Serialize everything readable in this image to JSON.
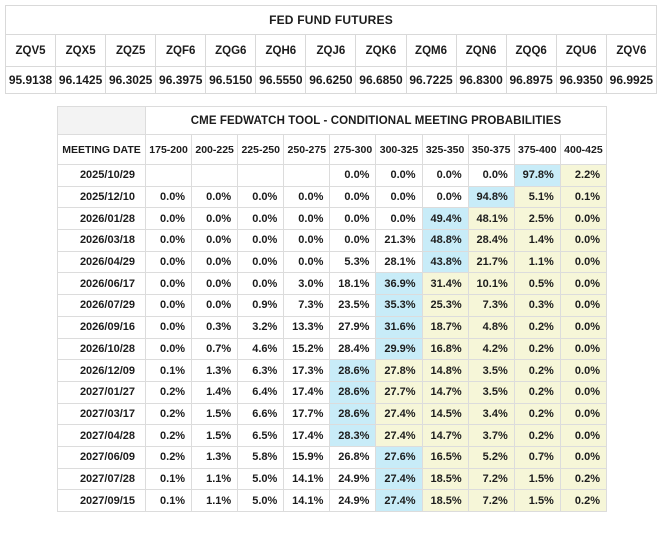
{
  "chart_data": [
    {
      "type": "table",
      "title": "FED FUND FUTURES",
      "columns": [
        "ZQV5",
        "ZQX5",
        "ZQZ5",
        "ZQF6",
        "ZQG6",
        "ZQH6",
        "ZQJ6",
        "ZQK6",
        "ZQM6",
        "ZQN6",
        "ZQQ6",
        "ZQU6",
        "ZQV6"
      ],
      "rows": [
        [
          "95.9138",
          "96.1425",
          "96.3025",
          "96.3975",
          "96.5150",
          "96.5550",
          "96.6250",
          "96.6850",
          "96.7225",
          "96.8300",
          "96.8975",
          "96.9350",
          "96.9925"
        ]
      ]
    },
    {
      "type": "table",
      "title": "CME FEDWATCH TOOL - CONDITIONAL MEETING PROBABILITIES",
      "columns": [
        "MEETING DATE",
        "175-200",
        "200-225",
        "225-250",
        "250-275",
        "275-300",
        "300-325",
        "325-350",
        "350-375",
        "375-400",
        "400-425"
      ],
      "rows": [
        [
          "2025/10/29",
          "",
          "",
          "",
          "",
          "0.0%",
          "0.0%",
          "0.0%",
          "0.0%",
          "97.8%",
          "2.2%"
        ],
        [
          "2025/12/10",
          "0.0%",
          "0.0%",
          "0.0%",
          "0.0%",
          "0.0%",
          "0.0%",
          "0.0%",
          "94.8%",
          "5.1%",
          "0.1%"
        ],
        [
          "2026/01/28",
          "0.0%",
          "0.0%",
          "0.0%",
          "0.0%",
          "0.0%",
          "0.0%",
          "49.4%",
          "48.1%",
          "2.5%",
          "0.0%"
        ],
        [
          "2026/03/18",
          "0.0%",
          "0.0%",
          "0.0%",
          "0.0%",
          "0.0%",
          "21.3%",
          "48.8%",
          "28.4%",
          "1.4%",
          "0.0%"
        ],
        [
          "2026/04/29",
          "0.0%",
          "0.0%",
          "0.0%",
          "0.0%",
          "5.3%",
          "28.1%",
          "43.8%",
          "21.7%",
          "1.1%",
          "0.0%"
        ],
        [
          "2026/06/17",
          "0.0%",
          "0.0%",
          "0.0%",
          "3.0%",
          "18.1%",
          "36.9%",
          "31.4%",
          "10.1%",
          "0.5%",
          "0.0%"
        ],
        [
          "2026/07/29",
          "0.0%",
          "0.0%",
          "0.9%",
          "7.3%",
          "23.5%",
          "35.3%",
          "25.3%",
          "7.3%",
          "0.3%",
          "0.0%"
        ],
        [
          "2026/09/16",
          "0.0%",
          "0.3%",
          "3.2%",
          "13.3%",
          "27.9%",
          "31.6%",
          "18.7%",
          "4.8%",
          "0.2%",
          "0.0%"
        ],
        [
          "2026/10/28",
          "0.0%",
          "0.7%",
          "4.6%",
          "15.2%",
          "28.4%",
          "29.9%",
          "16.8%",
          "4.2%",
          "0.2%",
          "0.0%"
        ],
        [
          "2026/12/09",
          "0.1%",
          "1.3%",
          "6.3%",
          "17.3%",
          "28.6%",
          "27.8%",
          "14.8%",
          "3.5%",
          "0.2%",
          "0.0%"
        ],
        [
          "2027/01/27",
          "0.2%",
          "1.4%",
          "6.4%",
          "17.4%",
          "28.6%",
          "27.7%",
          "14.7%",
          "3.5%",
          "0.2%",
          "0.0%"
        ],
        [
          "2027/03/17",
          "0.2%",
          "1.5%",
          "6.6%",
          "17.7%",
          "28.6%",
          "27.4%",
          "14.5%",
          "3.4%",
          "0.2%",
          "0.0%"
        ],
        [
          "2027/04/28",
          "0.2%",
          "1.5%",
          "6.5%",
          "17.4%",
          "28.3%",
          "27.4%",
          "14.7%",
          "3.7%",
          "0.2%",
          "0.0%"
        ],
        [
          "2027/06/09",
          "0.2%",
          "1.3%",
          "5.8%",
          "15.9%",
          "26.8%",
          "27.6%",
          "16.5%",
          "5.2%",
          "0.7%",
          "0.0%"
        ],
        [
          "2027/07/28",
          "0.1%",
          "1.1%",
          "5.0%",
          "14.1%",
          "24.9%",
          "27.4%",
          "18.5%",
          "7.2%",
          "1.5%",
          "0.2%"
        ],
        [
          "2027/09/15",
          "0.1%",
          "1.1%",
          "5.0%",
          "14.1%",
          "24.9%",
          "27.4%",
          "18.5%",
          "7.2%",
          "1.5%",
          "0.2%"
        ]
      ],
      "max_col": [
        9,
        8,
        7,
        7,
        7,
        6,
        6,
        6,
        6,
        5,
        5,
        5,
        5,
        6,
        6,
        6
      ],
      "highlight": {
        "max_cell_color": "#c8ecf8",
        "right_of_max_color": "#f6f6d8"
      },
      "layout": {
        "legend": "off",
        "grid": "on"
      }
    }
  ]
}
